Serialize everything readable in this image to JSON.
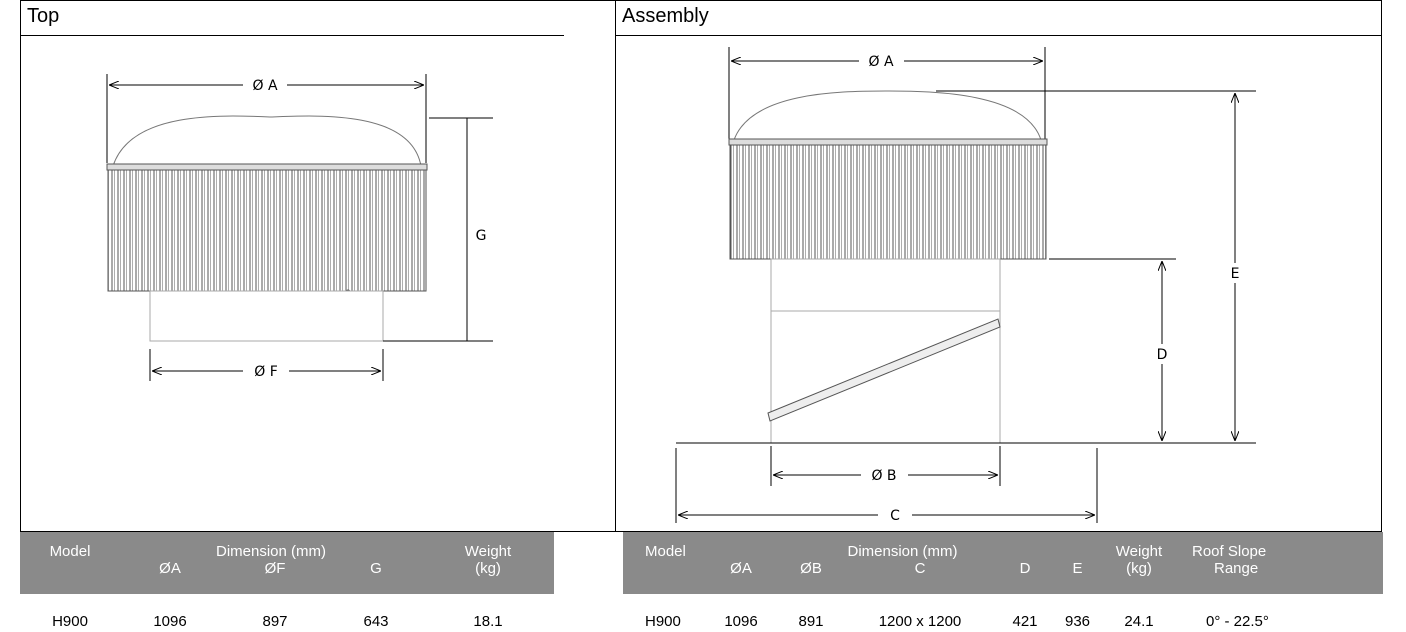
{
  "top": {
    "title": "Top",
    "labels": {
      "dia_a": "Ø A",
      "dia_f": "Ø F",
      "g": "G"
    }
  },
  "assembly": {
    "title": "Assembly",
    "labels": {
      "dia_a": "Ø A",
      "dia_b": "Ø B",
      "c": "C",
      "d": "D",
      "e": "E"
    }
  },
  "top_table": {
    "header_model": "Model",
    "header_dimension": "Dimension (mm)",
    "header_weight": "Weight",
    "header_weight_unit": "(kg)",
    "sub_headers": [
      "ØA",
      "ØF",
      "G"
    ],
    "rows": [
      {
        "model": "H900",
        "a": "1096",
        "f": "897",
        "g": "643",
        "weight": "18.1"
      }
    ]
  },
  "assembly_table": {
    "header_model": "Model",
    "header_dimension": "Dimension (mm)",
    "header_weight": "Weight",
    "header_weight_unit": "(kg)",
    "header_slope": "Roof Slope",
    "header_slope_2": "Range",
    "sub_headers": [
      "ØA",
      "ØB",
      "C",
      "D",
      "E"
    ],
    "rows": [
      {
        "model": "H900",
        "a": "1096",
        "b": "891",
        "c": "1200 x 1200",
        "d": "421",
        "e": "936",
        "weight": "24.1",
        "slope": "0° - 22.5°"
      }
    ]
  }
}
